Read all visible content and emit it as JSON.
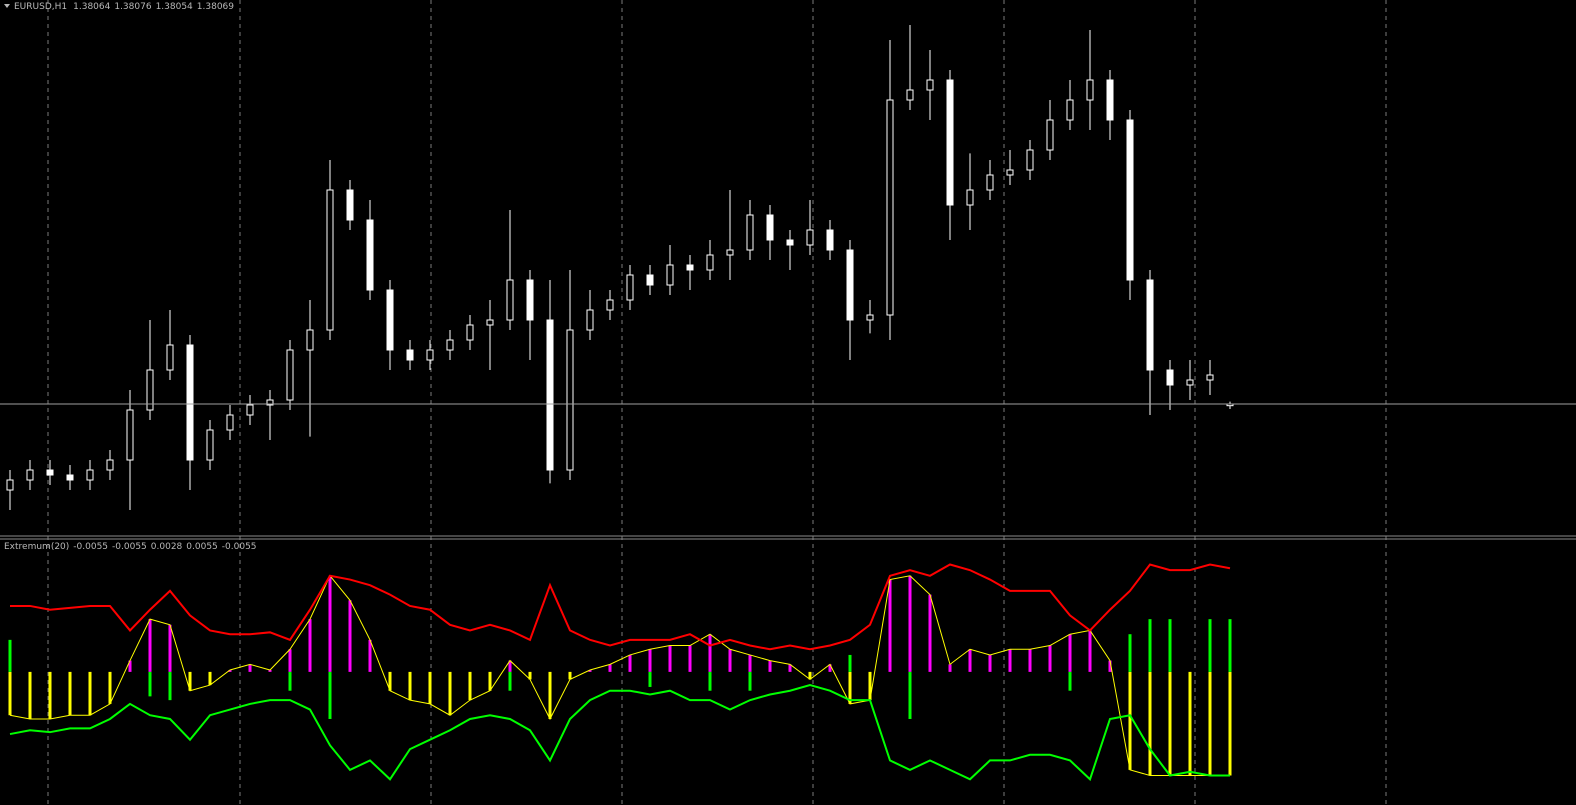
{
  "chart_data": [
    {
      "type": "candlestick",
      "title": "EURUSD,H1",
      "ylim": [
        1.37676,
        1.39281
      ],
      "color": "#ffffff",
      "background": "#000000",
      "open": [
        1.37811,
        1.37841,
        1.37871,
        1.37856,
        1.37841,
        1.37871,
        1.37901,
        1.38051,
        1.38171,
        1.38246,
        1.37901,
        1.37991,
        1.38036,
        1.38066,
        1.38081,
        1.38231,
        1.38291,
        1.38711,
        1.38621,
        1.38411,
        1.38231,
        1.38201,
        1.38231,
        1.38261,
        1.38306,
        1.38321,
        1.38441,
        1.38321,
        1.37871,
        1.38291,
        1.38351,
        1.38381,
        1.38456,
        1.38426,
        1.38486,
        1.38471,
        1.38516,
        1.38531,
        1.38636,
        1.38561,
        1.38546,
        1.38591,
        1.38531,
        1.38321,
        1.38336,
        1.38981,
        1.39011,
        1.39041,
        1.38666,
        1.38711,
        1.38756,
        1.38771,
        1.38831,
        1.38921,
        1.38981,
        1.39041,
        1.38921,
        1.38441,
        1.38171,
        1.38126,
        1.38141,
        1.38064
      ],
      "high": [
        1.37871,
        1.37901,
        1.37901,
        1.37886,
        1.37901,
        1.37931,
        1.38111,
        1.38321,
        1.38351,
        1.38276,
        1.38021,
        1.38066,
        1.38096,
        1.38111,
        1.38261,
        1.38381,
        1.38801,
        1.38741,
        1.38681,
        1.38441,
        1.38261,
        1.38261,
        1.38291,
        1.38336,
        1.38381,
        1.38651,
        1.38471,
        1.38441,
        1.38471,
        1.38411,
        1.38411,
        1.38486,
        1.38486,
        1.38546,
        1.38516,
        1.38561,
        1.38711,
        1.38681,
        1.38666,
        1.38591,
        1.38681,
        1.38621,
        1.38561,
        1.38381,
        1.39161,
        1.39206,
        1.39131,
        1.39071,
        1.38821,
        1.38801,
        1.38831,
        1.38861,
        1.38981,
        1.39041,
        1.39191,
        1.39071,
        1.38951,
        1.38471,
        1.38201,
        1.38201,
        1.38201,
        1.38076
      ],
      "low": [
        1.37751,
        1.37811,
        1.37826,
        1.37811,
        1.37811,
        1.37841,
        1.37751,
        1.38021,
        1.38141,
        1.37811,
        1.37871,
        1.37961,
        1.38006,
        1.37961,
        1.38051,
        1.37971,
        1.38261,
        1.38591,
        1.38381,
        1.38171,
        1.38171,
        1.38171,
        1.38201,
        1.38231,
        1.38171,
        1.38291,
        1.38201,
        1.37831,
        1.37841,
        1.38261,
        1.38321,
        1.38351,
        1.38396,
        1.38396,
        1.38411,
        1.38441,
        1.38441,
        1.38501,
        1.38501,
        1.38471,
        1.38516,
        1.38501,
        1.38201,
        1.38281,
        1.38261,
        1.38951,
        1.38921,
        1.38561,
        1.38591,
        1.38681,
        1.38726,
        1.38741,
        1.38801,
        1.38891,
        1.38891,
        1.38861,
        1.38381,
        1.38036,
        1.38051,
        1.38081,
        1.38096,
        1.38054
      ],
      "close": [
        1.37841,
        1.37871,
        1.37856,
        1.37841,
        1.37871,
        1.37901,
        1.38051,
        1.38171,
        1.38246,
        1.37901,
        1.37991,
        1.38036,
        1.38066,
        1.38081,
        1.38231,
        1.38291,
        1.38711,
        1.38621,
        1.38411,
        1.38231,
        1.38201,
        1.38231,
        1.38261,
        1.38306,
        1.38321,
        1.38441,
        1.38321,
        1.37871,
        1.38291,
        1.38351,
        1.38381,
        1.38456,
        1.38426,
        1.38486,
        1.38471,
        1.38516,
        1.38531,
        1.38636,
        1.38561,
        1.38546,
        1.38591,
        1.38531,
        1.38321,
        1.38336,
        1.38981,
        1.39011,
        1.39041,
        1.38666,
        1.38711,
        1.38756,
        1.38771,
        1.38831,
        1.38921,
        1.38981,
        1.39041,
        1.38921,
        1.38441,
        1.38171,
        1.38126,
        1.38141,
        1.38156,
        1.38069
      ]
    },
    {
      "type": "indicator",
      "title": "Extremum(20)",
      "ylim": [
        -0.0068,
        0.007
      ],
      "series": [
        {
          "style": "line",
          "color": "#ff0000",
          "values": [
            0.0035,
            0.0035,
            0.0033,
            0.0034,
            0.0035,
            0.0035,
            0.0022,
            0.0033,
            0.0043,
            0.003,
            0.0022,
            0.002,
            0.002,
            0.0021,
            0.0017,
            0.0033,
            0.0051,
            0.0049,
            0.0046,
            0.0041,
            0.0035,
            0.0033,
            0.0025,
            0.0022,
            0.0025,
            0.0022,
            0.0017,
            0.0046,
            0.0022,
            0.0017,
            0.0014,
            0.0017,
            0.0017,
            0.0017,
            0.002,
            0.0014,
            0.0017,
            0.0014,
            0.0012,
            0.0014,
            0.0012,
            0.0014,
            0.0017,
            0.0025,
            0.0051,
            0.0054,
            0.0051,
            0.0057,
            0.0054,
            0.0049,
            0.0043,
            0.0043,
            0.0043,
            0.003,
            0.0022,
            0.0033,
            0.0043,
            0.0057,
            0.0054,
            0.0054,
            0.0057,
            0.0055
          ]
        },
        {
          "style": "line",
          "color": "#00ff00",
          "values": [
            -0.0033,
            -0.0031,
            -0.0032,
            -0.003,
            -0.003,
            -0.0025,
            -0.0017,
            -0.0023,
            -0.0025,
            -0.0036,
            -0.0023,
            -0.002,
            -0.0017,
            -0.0015,
            -0.0015,
            -0.002,
            -0.0039,
            -0.0052,
            -0.0047,
            -0.0057,
            -0.0041,
            -0.0036,
            -0.0031,
            -0.0025,
            -0.0023,
            -0.0025,
            -0.0031,
            -0.0047,
            -0.0025,
            -0.0015,
            -0.001,
            -0.001,
            -0.0012,
            -0.001,
            -0.0015,
            -0.0015,
            -0.002,
            -0.0015,
            -0.0012,
            -0.001,
            -0.0007,
            -0.001,
            -0.0015,
            -0.0015,
            -0.0047,
            -0.0052,
            -0.0047,
            -0.0052,
            -0.0057,
            -0.0047,
            -0.0047,
            -0.0044,
            -0.0044,
            -0.0047,
            -0.0057,
            -0.0025,
            -0.0023,
            -0.0041,
            -0.0055,
            -0.0053,
            -0.0055,
            -0.0055
          ]
        },
        {
          "style": "histogram",
          "colors": [
            "#ff00ff",
            "#ffff00"
          ],
          "values": [
            -0.0023,
            -0.0025,
            -0.0025,
            -0.0023,
            -0.0023,
            -0.0017,
            0.0006,
            0.0028,
            0.0025,
            -0.001,
            -0.0007,
            0.0001,
            0.0004,
            0.0001,
            0.0012,
            0.0028,
            0.0051,
            0.0038,
            0.0017,
            -0.001,
            -0.0015,
            -0.0017,
            -0.0023,
            -0.0015,
            -0.001,
            0.0006,
            -0.0004,
            -0.0025,
            -0.0004,
            0.0001,
            0.0004,
            0.0009,
            0.0012,
            0.0014,
            0.0014,
            0.002,
            0.0012,
            0.0009,
            0.0006,
            0.0004,
            -0.0004,
            0.0004,
            -0.0017,
            -0.0015,
            0.0049,
            0.0051,
            0.0041,
            0.0004,
            0.0012,
            0.0009,
            0.0012,
            0.0012,
            0.0014,
            0.002,
            0.0022,
            0.0006,
            -0.0052,
            -0.0055,
            -0.0055,
            -0.0055,
            -0.0055,
            -0.0055
          ]
        },
        {
          "style": "bars",
          "color": "#00ff00",
          "values": [
            0.0017,
            null,
            null,
            null,
            null,
            null,
            null,
            -0.0013,
            -0.0015,
            null,
            null,
            null,
            null,
            null,
            -0.001,
            null,
            -0.0025,
            null,
            null,
            null,
            null,
            null,
            null,
            null,
            null,
            -0.001,
            null,
            null,
            null,
            null,
            null,
            null,
            -0.0008,
            null,
            null,
            -0.001,
            null,
            -0.001,
            null,
            null,
            null,
            null,
            0.0009,
            null,
            null,
            -0.0025,
            null,
            null,
            null,
            null,
            null,
            null,
            null,
            -0.001,
            null,
            null,
            0.002,
            0.0028,
            0.0028,
            null,
            0.0028,
            0.0028
          ]
        }
      ]
    }
  ]
}
